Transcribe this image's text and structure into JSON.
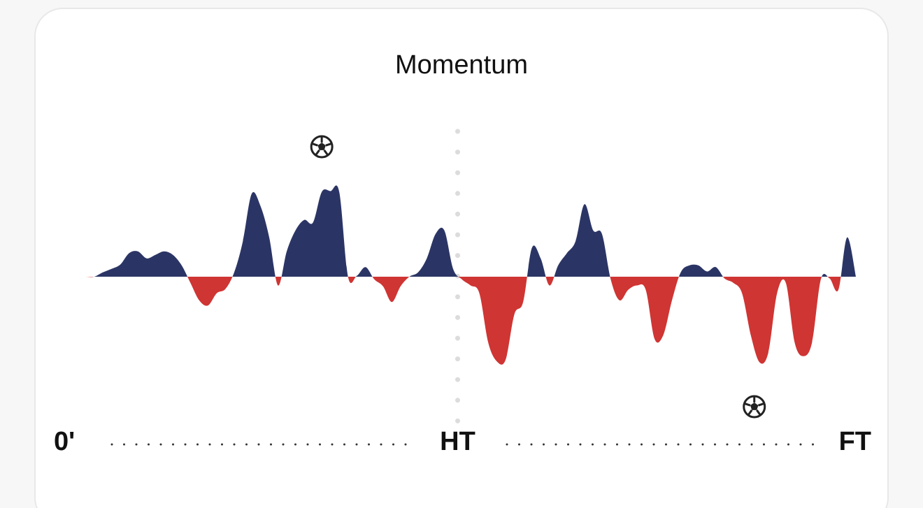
{
  "chart_data": {
    "type": "area",
    "title": "Momentum",
    "x": [
      0,
      1,
      2,
      3,
      4,
      5,
      6,
      7,
      8,
      9,
      10,
      11,
      12,
      13,
      14,
      15,
      16,
      17,
      18,
      19,
      20,
      21,
      22,
      23,
      24,
      25,
      26,
      27,
      28,
      29,
      30,
      31,
      32,
      33,
      34,
      35,
      36,
      37,
      38,
      39,
      40,
      41,
      42,
      43,
      44,
      45,
      46,
      47,
      48,
      49,
      50,
      51,
      52,
      53,
      54,
      55,
      56,
      57,
      58,
      59,
      60,
      61,
      62,
      63,
      64,
      65,
      66,
      67,
      68,
      69,
      70,
      71,
      72,
      73,
      74,
      75,
      76,
      77,
      78,
      79,
      80,
      81,
      82,
      83,
      84,
      85,
      86,
      87,
      88,
      89,
      90
    ],
    "values": [
      0,
      0,
      0,
      0,
      5,
      9,
      14,
      27,
      29,
      21,
      25,
      29,
      25,
      13,
      -7,
      -27,
      -33,
      -19,
      -14,
      5,
      41,
      95,
      81,
      45,
      -10,
      29,
      53,
      65,
      62,
      97,
      98,
      97,
      0,
      1,
      11,
      -3,
      -11,
      -29,
      -11,
      0,
      5,
      21,
      49,
      53,
      9,
      -3,
      -10,
      -19,
      -75,
      -97,
      -95,
      -43,
      -29,
      33,
      21,
      -10,
      13,
      27,
      41,
      83,
      53,
      49,
      -3,
      -27,
      -15,
      -10,
      -15,
      -71,
      -67,
      -27,
      5,
      13,
      13,
      6,
      11,
      -2,
      -7,
      -19,
      -67,
      -98,
      -87,
      -19,
      -7,
      -75,
      -91,
      -75,
      -3,
      -2,
      -15,
      45,
      0
    ],
    "positive_color": "#2b3565",
    "negative_color": "#cf3533",
    "xlim": [
      0,
      90
    ],
    "ylim": [
      -100,
      100
    ],
    "xticks": [
      {
        "value": 0,
        "label": "0'"
      },
      {
        "value": 45,
        "label": "HT"
      },
      {
        "value": 90,
        "label": "FT"
      }
    ],
    "goals": [
      {
        "minute": 29,
        "side": "top"
      },
      {
        "minute": 78.4,
        "side": "bottom"
      }
    ]
  }
}
